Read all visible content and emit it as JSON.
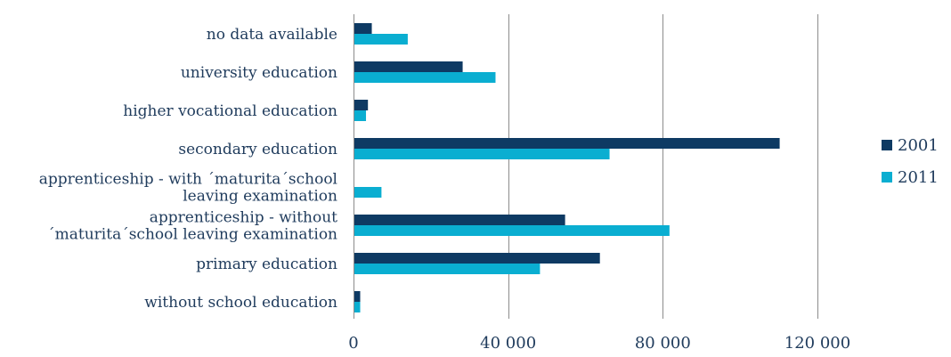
{
  "chart_data": {
    "type": "bar",
    "orientation": "horizontal",
    "categories": [
      "no data available",
      "university education",
      "higher vocational education",
      "secondary education",
      "apprenticeship - with ´maturita´school leaving examination",
      "apprenticeship - without ´maturita´school leaving examination",
      "primary education",
      "without school education"
    ],
    "category_lines": [
      [
        "no data available"
      ],
      [
        "university education"
      ],
      [
        "higher vocational education"
      ],
      [
        "secondary education"
      ],
      [
        "apprenticeship - with ´maturita´school",
        "leaving examination"
      ],
      [
        "apprenticeship - without",
        "´maturita´school leaving examination"
      ],
      [
        "primary education"
      ],
      [
        "without school education"
      ]
    ],
    "series": [
      {
        "name": "2001",
        "color": "#0e3a63",
        "values": [
          4500,
          28000,
          3500,
          110000,
          0,
          54500,
          63500,
          1500
        ]
      },
      {
        "name": "2011",
        "color": "#0aaed1",
        "values": [
          13800,
          36500,
          3000,
          66000,
          7000,
          81500,
          48000,
          1500
        ]
      }
    ],
    "xlim": [
      0,
      120000
    ],
    "xticks": [
      0,
      40000,
      80000,
      120000
    ],
    "xtick_labels": [
      "0",
      "40 000",
      "80 000",
      "120 000"
    ],
    "grid": true,
    "legend_position": "right",
    "title": "",
    "xlabel": "",
    "ylabel": ""
  }
}
